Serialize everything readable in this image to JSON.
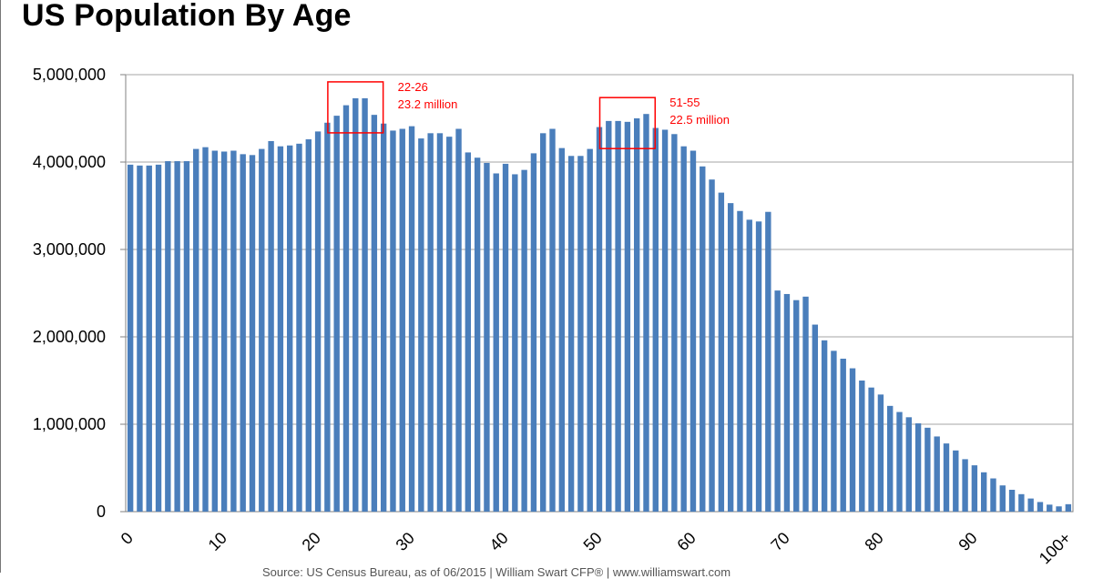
{
  "title": "US Population By Age",
  "source": "Source: US Census Bureau, as of 06/2015 | William Swart CFP® | www.williamswart.com",
  "colors": {
    "bar": "#4a7ebb",
    "annotation": "#ff0000",
    "grid": "#a6a6a6",
    "axis": "#808080"
  },
  "chart_data": {
    "type": "bar",
    "xlabel": "",
    "ylabel": "",
    "ylim": [
      0,
      5000000
    ],
    "y_ticks": [
      0,
      1000000,
      2000000,
      3000000,
      4000000,
      5000000
    ],
    "y_tick_labels": [
      "0",
      "1,000,000",
      "2,000,000",
      "3,000,000",
      "4,000,000",
      "5,000,000"
    ],
    "grid": true,
    "x_tick_labels": [
      {
        "index": 0,
        "label": "0"
      },
      {
        "index": 10,
        "label": "10"
      },
      {
        "index": 20,
        "label": "20"
      },
      {
        "index": 30,
        "label": "30"
      },
      {
        "index": 40,
        "label": "40"
      },
      {
        "index": 50,
        "label": "50"
      },
      {
        "index": 60,
        "label": "60"
      },
      {
        "index": 70,
        "label": "70"
      },
      {
        "index": 80,
        "label": "80"
      },
      {
        "index": 90,
        "label": "90"
      },
      {
        "index": 100,
        "label": "100+"
      }
    ],
    "values": [
      3970000,
      3960000,
      3960000,
      3970000,
      4010000,
      4010000,
      4010000,
      4150000,
      4170000,
      4130000,
      4120000,
      4130000,
      4090000,
      4080000,
      4150000,
      4240000,
      4180000,
      4190000,
      4210000,
      4260000,
      4350000,
      4450000,
      4530000,
      4650000,
      4730000,
      4730000,
      4540000,
      4440000,
      4360000,
      4380000,
      4410000,
      4270000,
      4330000,
      4330000,
      4290000,
      4380000,
      4110000,
      4050000,
      3990000,
      3870000,
      3980000,
      3860000,
      3910000,
      4100000,
      4330000,
      4380000,
      4160000,
      4070000,
      4070000,
      4150000,
      4400000,
      4470000,
      4470000,
      4460000,
      4500000,
      4550000,
      4390000,
      4370000,
      4320000,
      4180000,
      4130000,
      3950000,
      3800000,
      3650000,
      3530000,
      3440000,
      3340000,
      3320000,
      3430000,
      2530000,
      2490000,
      2420000,
      2460000,
      2140000,
      1960000,
      1840000,
      1750000,
      1640000,
      1500000,
      1420000,
      1340000,
      1210000,
      1140000,
      1080000,
      1010000,
      960000,
      860000,
      780000,
      700000,
      600000,
      530000,
      450000,
      380000,
      300000,
      250000,
      200000,
      150000,
      110000,
      80000,
      60000,
      85000
    ],
    "annotations": [
      {
        "range": "22-26",
        "value": "23.2 million",
        "start_index": 22,
        "end_index": 26
      },
      {
        "range": "51-55",
        "value": "22.5 million",
        "start_index": 51,
        "end_index": 55
      }
    ]
  }
}
